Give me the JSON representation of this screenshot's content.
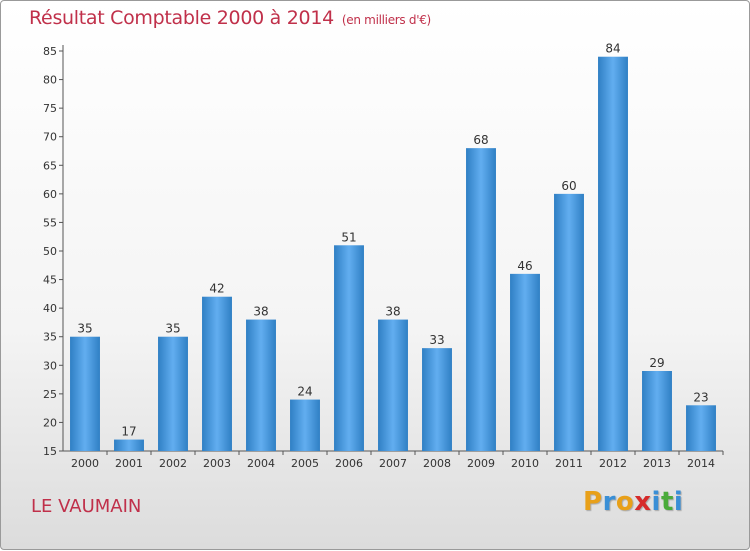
{
  "chart_data": {
    "type": "bar",
    "title": "Résultat Comptable 2000 à 2014",
    "subtitle": "(en milliers d'€)",
    "categories": [
      "2000",
      "2001",
      "2002",
      "2003",
      "2004",
      "2005",
      "2006",
      "2007",
      "2008",
      "2009",
      "2010",
      "2011",
      "2012",
      "2013",
      "2014"
    ],
    "values": [
      35,
      17,
      35,
      42,
      38,
      24,
      51,
      38,
      33,
      68,
      46,
      60,
      84,
      29,
      23
    ],
    "ylim": [
      15,
      85
    ],
    "yticks": [
      15,
      20,
      25,
      30,
      35,
      40,
      45,
      50,
      55,
      60,
      65,
      70,
      75,
      80,
      85
    ],
    "grid": false,
    "bar_color": "#3a8fd6"
  },
  "footer": {
    "name": "LE VAUMAIN",
    "logo_letters": [
      "P",
      "r",
      "o",
      "x",
      "i",
      "t",
      "i"
    ],
    "logo_colors": [
      "#e8a019",
      "#3a8fd6",
      "#e8a019",
      "#d62a2a",
      "#3a8fd6",
      "#4aab3a",
      "#3a8fd6"
    ]
  }
}
